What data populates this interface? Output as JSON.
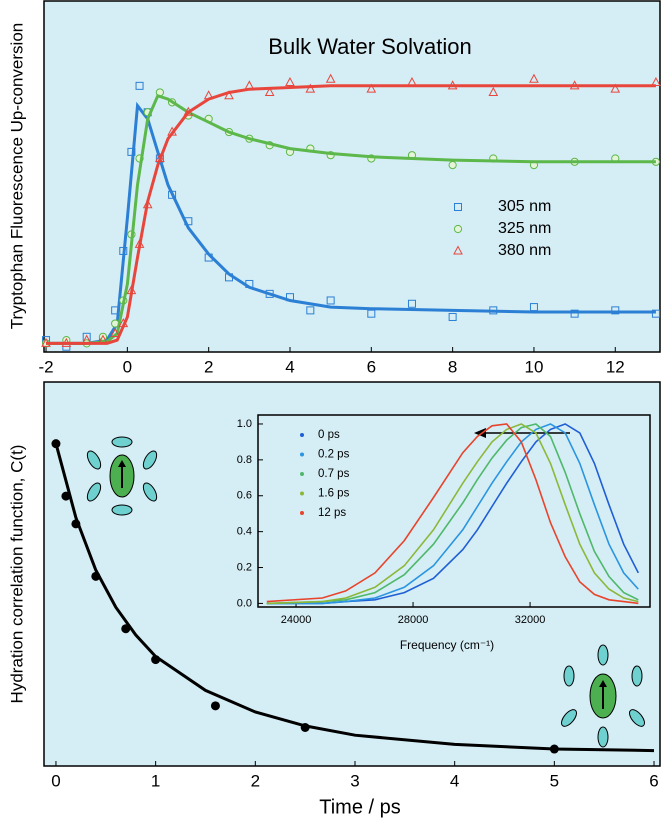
{
  "chart_data": [
    {
      "type": "scatter",
      "title": "Bulk Water Solvation",
      "ylabel": "Tryptophan Fluorescence Up-conversion",
      "xlim": [
        -2.05,
        13.1
      ],
      "ylim": [
        0,
        1.06
      ],
      "xticks": [
        -2,
        0,
        2,
        4,
        6,
        8,
        10,
        12
      ],
      "x": [
        -2,
        -1.5,
        -1,
        -0.6,
        -0.3,
        -0.1,
        0.1,
        0.3,
        0.5,
        0.8,
        1.1,
        1.5,
        2,
        2.5,
        3,
        3.5,
        4,
        4.5,
        5,
        6,
        7,
        8,
        9,
        10,
        11,
        12,
        13
      ],
      "fit_x": [
        -2,
        -1,
        -0.5,
        -0.25,
        0,
        0.25,
        0.5,
        0.75,
        1,
        1.5,
        2,
        2.5,
        3,
        4,
        5,
        6,
        8,
        10,
        13
      ],
      "series": [
        {
          "name": "305 nm",
          "color": "#2b7fd4",
          "marker": "square",
          "values": [
            0.03,
            0.01,
            0.04,
            0.03,
            0.12,
            0.3,
            0.6,
            0.8,
            0.72,
            0.58,
            0.47,
            0.39,
            0.28,
            0.22,
            0.2,
            0.17,
            0.16,
            0.12,
            0.15,
            0.11,
            0.14,
            0.1,
            0.12,
            0.13,
            0.11,
            0.12,
            0.11
          ],
          "fit": [
            0.02,
            0.02,
            0.03,
            0.08,
            0.4,
            0.74,
            0.7,
            0.6,
            0.5,
            0.37,
            0.29,
            0.23,
            0.19,
            0.15,
            0.13,
            0.125,
            0.12,
            0.115,
            0.115
          ]
        },
        {
          "name": "325 nm",
          "color": "#5cb84a",
          "marker": "circle",
          "values": [
            0.02,
            0.03,
            0.02,
            0.04,
            0.08,
            0.15,
            0.35,
            0.58,
            0.72,
            0.78,
            0.75,
            0.71,
            0.7,
            0.66,
            0.64,
            0.62,
            0.6,
            0.61,
            0.59,
            0.58,
            0.59,
            0.56,
            0.58,
            0.56,
            0.57,
            0.58,
            0.57
          ],
          "fit": [
            0.02,
            0.02,
            0.025,
            0.05,
            0.2,
            0.5,
            0.7,
            0.77,
            0.76,
            0.72,
            0.69,
            0.66,
            0.64,
            0.61,
            0.595,
            0.585,
            0.575,
            0.57,
            0.57
          ]
        },
        {
          "name": "380 nm",
          "color": "#e8463c",
          "marker": "triangle",
          "values": [
            0.02,
            0.02,
            0.03,
            0.03,
            0.05,
            0.08,
            0.18,
            0.32,
            0.44,
            0.58,
            0.66,
            0.72,
            0.77,
            0.77,
            0.8,
            0.78,
            0.81,
            0.79,
            0.82,
            0.79,
            0.81,
            0.8,
            0.78,
            0.82,
            0.8,
            0.79,
            0.81
          ],
          "fit": [
            0.02,
            0.02,
            0.02,
            0.03,
            0.1,
            0.28,
            0.45,
            0.56,
            0.64,
            0.72,
            0.76,
            0.78,
            0.79,
            0.795,
            0.8,
            0.8,
            0.8,
            0.8,
            0.8
          ]
        }
      ]
    },
    {
      "type": "scatter",
      "xlabel": "Time / ps",
      "ylabel": "Hydration correlation function, C(t)",
      "xlim": [
        -0.12,
        6.06
      ],
      "ylim": [
        -0.045,
        1.2
      ],
      "xticks": [
        0,
        1,
        2,
        3,
        4,
        5,
        6
      ],
      "x": [
        0,
        0.1,
        0.2,
        0.4,
        0.7,
        1,
        1.6,
        2.5,
        5
      ],
      "fit_x": [
        0,
        0.2,
        0.4,
        0.6,
        0.8,
        1,
        1.5,
        2,
        2.5,
        3,
        4,
        5,
        6
      ],
      "series": [
        {
          "color": "#000000",
          "marker": "dot",
          "values": [
            1.0,
            0.83,
            0.74,
            0.57,
            0.4,
            0.3,
            0.15,
            0.08,
            0.01
          ],
          "fit": [
            1.0,
            0.76,
            0.59,
            0.47,
            0.38,
            0.31,
            0.2,
            0.13,
            0.085,
            0.055,
            0.025,
            0.01,
            0.005
          ]
        }
      ]
    },
    {
      "type": "line",
      "xlabel": "Frequency (cm⁻¹)",
      "xlim": [
        22700,
        36100
      ],
      "ylim": [
        -0.02,
        1.05
      ],
      "xticks": [
        24000,
        28000,
        32000
      ],
      "yticks": [
        {
          "value": 0,
          "label": "0.0"
        },
        {
          "value": 0.2,
          "label": "0.2"
        },
        {
          "value": 0.4,
          "label": "0.4"
        },
        {
          "value": 0.6,
          "label": "0.6"
        },
        {
          "value": 0.8,
          "label": "0.8"
        },
        {
          "value": 1,
          "label": "1.0"
        }
      ],
      "x": [
        23000,
        24900,
        25700,
        26700,
        27700,
        28700,
        29700,
        30200,
        30700,
        31200,
        31700,
        32200,
        32700,
        33200,
        33700,
        34200,
        34700,
        35200,
        35700
      ],
      "series": [
        {
          "name": "0 ps",
          "color": "#1f5fd6",
          "values": [
            0.0,
            0.0,
            0.01,
            0.02,
            0.06,
            0.14,
            0.3,
            0.41,
            0.54,
            0.67,
            0.79,
            0.9,
            0.97,
            1.0,
            0.95,
            0.78,
            0.55,
            0.33,
            0.17
          ]
        },
        {
          "name": "0.2 ps",
          "color": "#2a95e0",
          "values": [
            0.0,
            0.0,
            0.01,
            0.03,
            0.09,
            0.21,
            0.41,
            0.54,
            0.67,
            0.79,
            0.9,
            0.97,
            1.0,
            0.95,
            0.78,
            0.55,
            0.33,
            0.17,
            0.08
          ]
        },
        {
          "name": "0.7 ps",
          "color": "#4fb86a",
          "values": [
            0.0,
            0.01,
            0.02,
            0.06,
            0.16,
            0.33,
            0.56,
            0.69,
            0.81,
            0.91,
            0.98,
            1.0,
            0.93,
            0.73,
            0.5,
            0.29,
            0.15,
            0.06,
            0.02
          ]
        },
        {
          "name": "1.6 ps",
          "color": "#8cb83a",
          "values": [
            0.0,
            0.01,
            0.03,
            0.09,
            0.21,
            0.41,
            0.67,
            0.79,
            0.9,
            0.97,
            1.0,
            0.95,
            0.78,
            0.55,
            0.33,
            0.17,
            0.08,
            0.03,
            0.01
          ]
        },
        {
          "name": "12 ps",
          "color": "#e8442c",
          "values": [
            0.01,
            0.03,
            0.07,
            0.17,
            0.35,
            0.59,
            0.84,
            0.93,
            0.99,
            1.0,
            0.9,
            0.69,
            0.45,
            0.26,
            0.12,
            0.05,
            0.02,
            0.01,
            0.0
          ]
        }
      ]
    }
  ]
}
